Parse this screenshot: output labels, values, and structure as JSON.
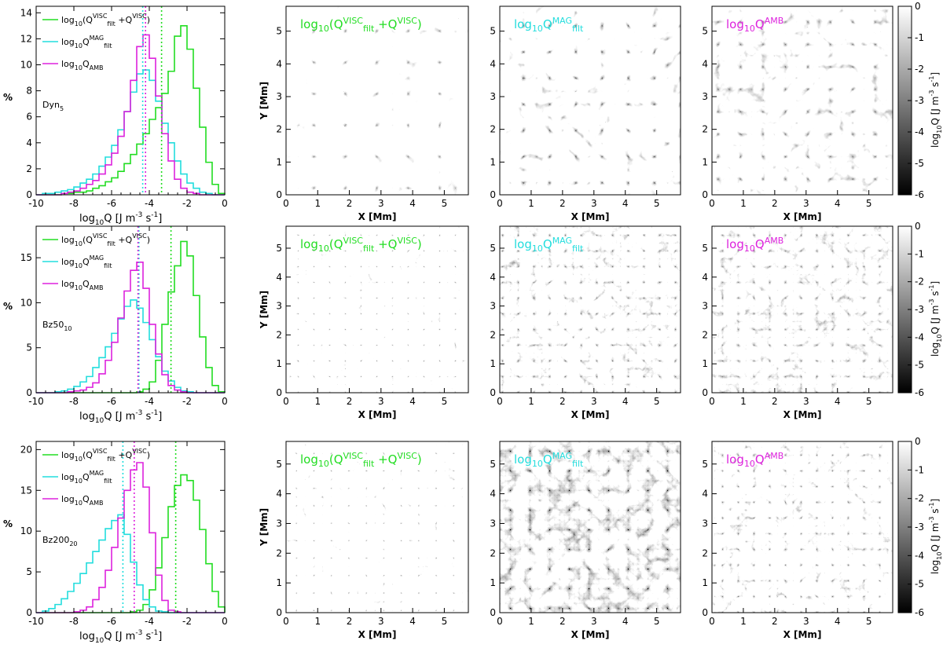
{
  "colors": {
    "viscous": "#22dd22",
    "magnetic": "#22dddd",
    "ambipolar": "#dd22dd",
    "axis": "#000000"
  },
  "labels": {
    "hist_ylabel": "%",
    "hist_xlabel_base": "log",
    "hist_xlabel_sub": "10",
    "hist_xlabel_rest": "Q  [J m",
    "hist_xlabel_exp1": "-3",
    "hist_xlabel_mid": " s",
    "hist_xlabel_exp2": "-1",
    "hist_xlabel_end": "]",
    "map_xlabel": "X [Mm]",
    "map_ylabel": "Y [Mm]",
    "legend_visc": "log10(Qfilt^VISC + Q^VISC)",
    "legend_mag": "log10 Qfilt^MAG",
    "legend_amb": "log10 Q_AMB",
    "map_label_visc": "log10(Qfilt^VISC + Q^VISC)",
    "map_label_mag": "log10 Qfilt^MAG",
    "map_label_amb": "log10 Q^AMB",
    "colorbar_label": "log10Q [J m^-3 s^-1]"
  },
  "colorbar": {
    "ticks": [
      "0",
      "-1",
      "-2",
      "-3",
      "-4",
      "-5",
      "-6"
    ]
  },
  "chart_data": [
    {
      "type": "bar",
      "name": "Dyn5",
      "title": "Dyn_5",
      "xlim": [
        -10,
        0
      ],
      "ylim": [
        0,
        14.5
      ],
      "xticks": [
        -10,
        -8,
        -6,
        -4,
        -2,
        0
      ],
      "yticks": [
        0,
        2,
        4,
        6,
        8,
        10,
        12,
        14
      ],
      "bin_start": -10,
      "bin_width": 0.3333,
      "series": [
        {
          "name": "log10(Qfilt^VISC + Q^VISC)",
          "values": [
            0,
            0,
            0,
            0,
            0.1,
            0.1,
            0.2,
            0.2,
            0.3,
            0.5,
            0.7,
            1.0,
            1.3,
            1.8,
            2.4,
            3.1,
            3.9,
            4.7,
            5.8,
            6.7,
            7.8,
            9.5,
            12.2,
            13.0,
            11.2,
            8.2,
            5.2,
            2.5,
            0.8,
            0.1
          ]
        },
        {
          "name": "log10 Qfilt^MAG",
          "values": [
            0,
            0.1,
            0.1,
            0.2,
            0.3,
            0.4,
            0.6,
            0.9,
            1.2,
            1.6,
            2.2,
            2.9,
            3.8,
            5.0,
            6.4,
            7.9,
            9.3,
            9.6,
            8.8,
            7.2,
            5.5,
            4.0,
            2.6,
            1.6,
            0.9,
            0.5,
            0.2,
            0.1,
            0,
            0
          ]
        },
        {
          "name": "log10 Q_AMB",
          "values": [
            0,
            0,
            0,
            0,
            0.1,
            0.2,
            0.3,
            0.5,
            0.8,
            1.1,
            1.6,
            2.3,
            3.2,
            4.5,
            6.4,
            8.8,
            11.4,
            12.3,
            10.5,
            7.6,
            4.7,
            2.6,
            1.2,
            0.5,
            0.2,
            0.1,
            0,
            0,
            0,
            0
          ]
        }
      ],
      "means": [
        -3.35,
        -4.35,
        -4.2
      ]
    },
    {
      "type": "bar",
      "name": "Bz50_10",
      "title": "Bz50_10",
      "xlim": [
        -10,
        0
      ],
      "ylim": [
        0,
        18.5
      ],
      "xticks": [
        -10,
        -8,
        -6,
        -4,
        -2,
        0
      ],
      "yticks": [
        0,
        5,
        10,
        15
      ],
      "bin_start": -10,
      "bin_width": 0.3333,
      "series": [
        {
          "name": "log10(Qfilt^VISC + Q^VISC)",
          "values": [
            0,
            0,
            0,
            0,
            0,
            0,
            0,
            0,
            0,
            0,
            0,
            0,
            0,
            0,
            0,
            0,
            0.1,
            0.4,
            1.2,
            3.6,
            7.6,
            11.2,
            14.1,
            16.8,
            15.2,
            10.8,
            6.2,
            2.8,
            0.8,
            0.1
          ]
        },
        {
          "name": "log10 Qfilt^MAG",
          "values": [
            0,
            0,
            0,
            0.1,
            0.2,
            0.4,
            0.7,
            1.2,
            1.8,
            2.8,
            3.9,
            5.1,
            6.6,
            8.2,
            9.6,
            10.3,
            9.4,
            7.8,
            5.9,
            4.0,
            2.4,
            1.3,
            0.6,
            0.2,
            0.1,
            0,
            0,
            0,
            0,
            0
          ]
        },
        {
          "name": "log10 Q_AMB",
          "values": [
            0,
            0,
            0,
            0,
            0,
            0.1,
            0.2,
            0.3,
            0.6,
            1.1,
            2.1,
            3.6,
            5.6,
            8.3,
            11.3,
            13.6,
            14.5,
            11.6,
            7.6,
            4.3,
            2.0,
            0.8,
            0.3,
            0.1,
            0,
            0,
            0,
            0,
            0,
            0
          ]
        }
      ],
      "means": [
        -2.85,
        -4.55,
        -4.6
      ]
    },
    {
      "type": "bar",
      "name": "Bz200_20",
      "title": "Bz200_20",
      "xlim": [
        -10,
        0
      ],
      "ylim": [
        0,
        21
      ],
      "xticks": [
        -10,
        -8,
        -6,
        -4,
        -2,
        0
      ],
      "yticks": [
        0,
        5,
        10,
        15,
        20
      ],
      "bin_start": -10,
      "bin_width": 0.3333,
      "series": [
        {
          "name": "log10(Qfilt^VISC + Q^VISC)",
          "values": [
            0,
            0,
            0,
            0,
            0,
            0,
            0,
            0,
            0,
            0,
            0,
            0,
            0,
            0,
            0,
            0.1,
            0.3,
            1.0,
            2.8,
            5.5,
            9.2,
            13.0,
            15.6,
            16.9,
            16.2,
            13.8,
            10.2,
            6.0,
            2.6,
            0.7
          ]
        },
        {
          "name": "log10 Qfilt^MAG",
          "values": [
            0,
            0.2,
            0.5,
            1.0,
            1.7,
            2.6,
            3.6,
            4.8,
            6.1,
            7.5,
            8.9,
            10.3,
            11.3,
            12.0,
            9.6,
            6.2,
            3.4,
            1.6,
            0.7,
            0.2,
            0.1,
            0,
            0,
            0,
            0,
            0,
            0,
            0,
            0,
            0
          ]
        },
        {
          "name": "log10 Q_AMB",
          "values": [
            0,
            0,
            0,
            0,
            0,
            0,
            0.1,
            0.3,
            0.7,
            1.6,
            3.1,
            5.2,
            8.0,
            11.6,
            15.0,
            17.5,
            18.4,
            15.4,
            9.8,
            4.6,
            1.5,
            0.3,
            0.1,
            0,
            0,
            0,
            0,
            0,
            0,
            0
          ]
        }
      ],
      "means": [
        -2.6,
        -5.4,
        -4.8
      ]
    },
    {
      "type": "heatmap",
      "description_free": true,
      "xlim": [
        0,
        5.76
      ],
      "ylim": [
        0,
        5.76
      ],
      "xticks": [
        0,
        1,
        2,
        3,
        4,
        5
      ],
      "yticks": [
        0,
        1,
        2,
        3,
        4,
        5
      ],
      "zlim": [
        -6,
        0
      ],
      "panels": [
        "visc",
        "mag",
        "amb"
      ],
      "rows": [
        "Dyn5",
        "Bz50_10",
        "Bz200_20"
      ]
    }
  ]
}
